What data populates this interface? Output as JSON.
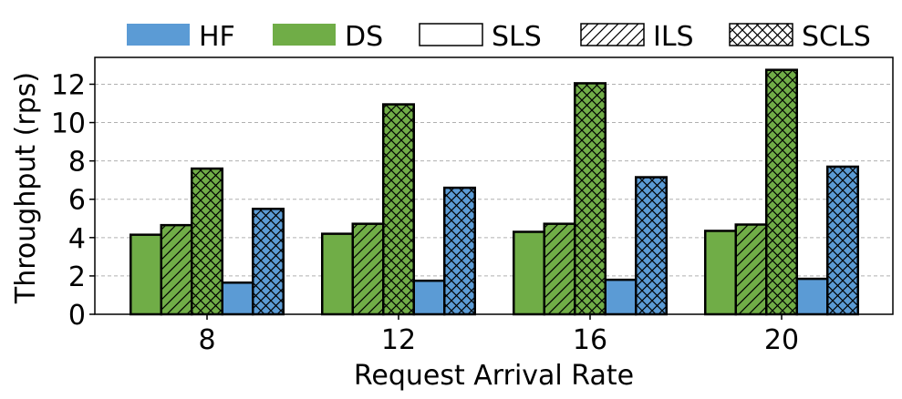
{
  "colors": {
    "hf": "#5b9bd5",
    "ds": "#70ad47",
    "edge": "#000000",
    "grid": "#b0b0b0"
  },
  "legend": [
    {
      "key": "hf",
      "label": "HF",
      "fill": "#5b9bd5",
      "hatch": "none"
    },
    {
      "key": "ds",
      "label": "DS",
      "fill": "#70ad47",
      "hatch": "none"
    },
    {
      "key": "sls",
      "label": "SLS",
      "fill": "#ffffff",
      "hatch": "none"
    },
    {
      "key": "ils",
      "label": "ILS",
      "fill": "#ffffff",
      "hatch": "diag"
    },
    {
      "key": "scls",
      "label": "SCLS",
      "fill": "#ffffff",
      "hatch": "cross"
    }
  ],
  "chart_data": {
    "type": "bar",
    "xlabel": "Request Arrival Rate",
    "ylabel": "Throughput (rps)",
    "categories": [
      "8",
      "12",
      "16",
      "20"
    ],
    "ylim": [
      0,
      13.4
    ],
    "yticks": [
      0,
      2,
      4,
      6,
      8,
      10,
      12
    ],
    "grid": "y-dashed",
    "legend_position": "top",
    "series": [
      {
        "framework": "DS",
        "strategy": "SLS",
        "color": "#70ad47",
        "hatch": "none",
        "values": [
          4.15,
          4.2,
          4.3,
          4.35
        ]
      },
      {
        "framework": "DS",
        "strategy": "ILS",
        "color": "#70ad47",
        "hatch": "diag",
        "values": [
          4.65,
          4.72,
          4.72,
          4.68
        ]
      },
      {
        "framework": "DS",
        "strategy": "SCLS",
        "color": "#70ad47",
        "hatch": "cross",
        "values": [
          7.6,
          10.95,
          12.05,
          12.75
        ]
      },
      {
        "framework": "HF",
        "strategy": "SLS",
        "color": "#5b9bd5",
        "hatch": "none",
        "values": [
          1.65,
          1.75,
          1.8,
          1.85
        ]
      },
      {
        "framework": "HF",
        "strategy": "SCLS",
        "color": "#5b9bd5",
        "hatch": "cross",
        "values": [
          5.5,
          6.6,
          7.15,
          7.7
        ]
      }
    ]
  }
}
